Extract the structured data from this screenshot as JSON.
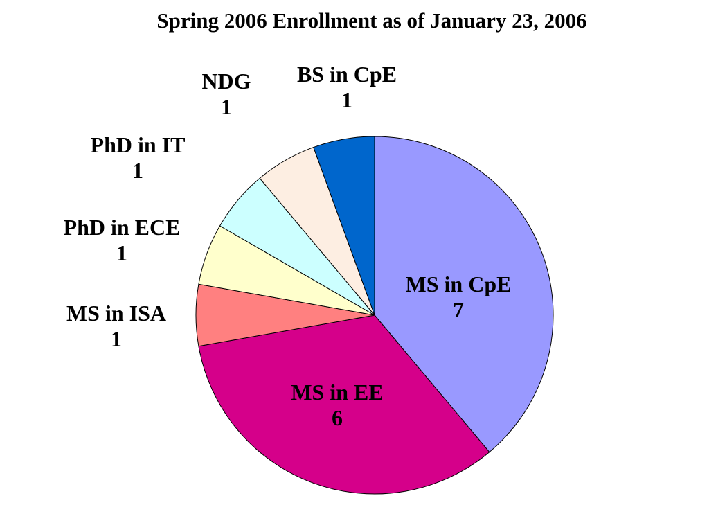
{
  "chart_data": {
    "type": "pie",
    "title": "Spring 2006 Enrollment as of January 23, 2006",
    "slices": [
      {
        "label": "MS in CpE",
        "value": 7,
        "value_text": "7",
        "color": "#9999ff"
      },
      {
        "label": "MS in EE",
        "value": 6,
        "value_text": "6",
        "color": "#d5008a"
      },
      {
        "label": "MS in ISA",
        "value": 1,
        "value_text": "1",
        "color": "#ff8080"
      },
      {
        "label": "PhD in ECE",
        "value": 1,
        "value_text": "1",
        "color": "#ffffcc"
      },
      {
        "label": "PhD in IT",
        "value": 1,
        "value_text": "1",
        "color": "#ccffff"
      },
      {
        "label": "NDG",
        "value": 1,
        "value_text": "1",
        "color": "#fdeee2"
      },
      {
        "label": "BS in CpE",
        "value": 1,
        "value_text": "1",
        "color": "#0066cc"
      }
    ],
    "direction": "clockwise",
    "start": "top"
  }
}
